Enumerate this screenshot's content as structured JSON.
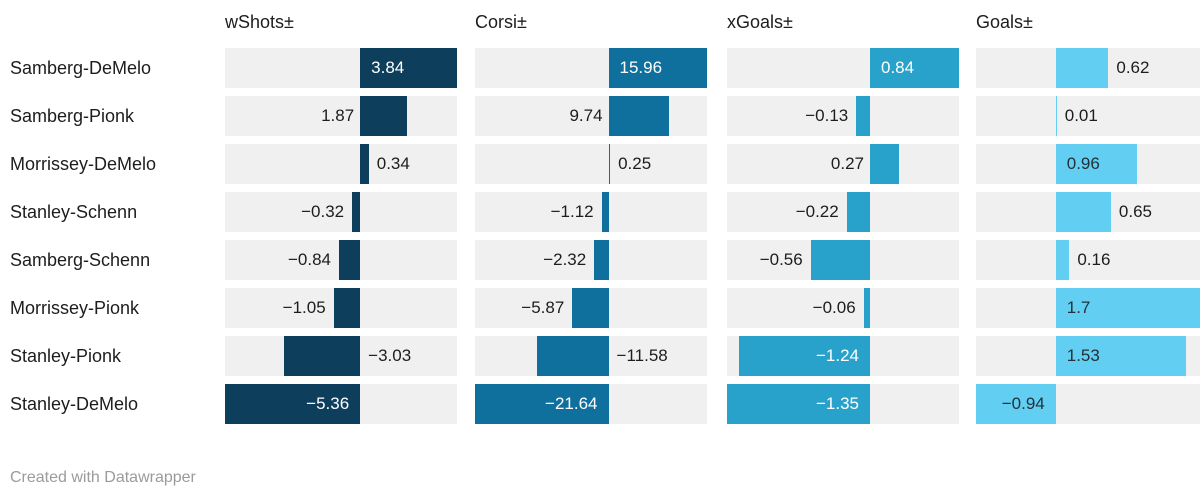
{
  "chart_data": {
    "type": "bar",
    "variant": "split-bars",
    "orientation": "horizontal",
    "grid": false,
    "legend_position": "column-headers",
    "categories": [
      "Samberg-DeMelo",
      "Samberg-Pionk",
      "Morrissey-DeMelo",
      "Stanley-Schenn",
      "Samberg-Schenn",
      "Morrissey-Pionk",
      "Stanley-Pionk",
      "Stanley-DeMelo"
    ],
    "series": [
      {
        "name": "wShots±",
        "color": "#0d3e5c",
        "label_color_inside": "#ffffff",
        "axis_range": [
          -5.36,
          3.84
        ],
        "values": [
          3.84,
          1.87,
          0.34,
          -0.32,
          -0.84,
          -1.05,
          -3.03,
          -5.36
        ],
        "labels": [
          "3.84",
          "1.87",
          "0.34",
          "−0.32",
          "−0.84",
          "−1.05",
          "−3.03",
          "−5.36"
        ]
      },
      {
        "name": "Corsi±",
        "color": "#0f709e",
        "label_color_inside": "#ffffff",
        "axis_range": [
          -21.64,
          15.96
        ],
        "values": [
          15.96,
          9.74,
          0.25,
          -1.12,
          -2.32,
          -5.87,
          -11.58,
          -21.64
        ],
        "labels": [
          "15.96",
          "9.74",
          "0.25",
          "−1.12",
          "−2.32",
          "−5.87",
          "−11.58",
          "−21.64"
        ]
      },
      {
        "name": "xGoals±",
        "color": "#29a2cb",
        "label_color_inside": "#ffffff",
        "axis_range": [
          -1.35,
          0.84
        ],
        "values": [
          0.84,
          -0.13,
          0.27,
          -0.22,
          -0.56,
          -0.06,
          -1.24,
          -1.35
        ],
        "labels": [
          "0.84",
          "−0.13",
          "0.27",
          "−0.22",
          "−0.56",
          "−0.06",
          "−1.24",
          "−1.35"
        ]
      },
      {
        "name": "Goals±",
        "color": "#62cff2",
        "label_color_inside": "#22313a",
        "axis_range": [
          -0.94,
          1.7
        ],
        "values": [
          0.62,
          0.01,
          0.96,
          0.65,
          0.16,
          1.7,
          1.53,
          -0.94
        ],
        "labels": [
          "0.62",
          "0.01",
          "0.96",
          "0.65",
          "0.16",
          "1.7",
          "1.53",
          "−0.94"
        ]
      }
    ]
  },
  "styles": {
    "track_color": "#f0f0f0",
    "text_color": "#1d1d1d",
    "footer_color": "#9b9b9b",
    "background": "#ffffff"
  },
  "footer": {
    "credit": "Created with Datawrapper"
  }
}
